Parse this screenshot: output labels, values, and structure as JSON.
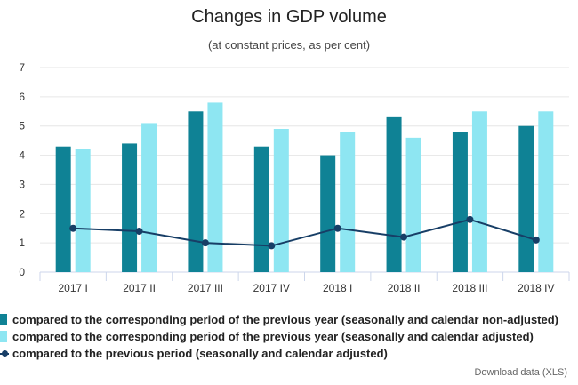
{
  "chart_data": {
    "type": "bar",
    "title": "Changes in GDP volume",
    "subtitle": "(at constant prices, as per cent)",
    "categories": [
      "2017 I",
      "2017 II",
      "2017 III",
      "2017 IV",
      "2018 I",
      "2018 II",
      "2018 III",
      "2018 IV"
    ],
    "ylim": [
      0,
      7
    ],
    "yticks": [
      0,
      1,
      2,
      3,
      4,
      5,
      6,
      7
    ],
    "grid": true,
    "legend_position": "bottom-left",
    "series": [
      {
        "name": "compared to the corresponding period of the previous year (seasonally and calendar non-adjusted)",
        "type": "bar",
        "color": "#0f8295",
        "values": [
          4.3,
          4.4,
          5.5,
          4.3,
          4.0,
          5.3,
          4.8,
          5.0
        ]
      },
      {
        "name": "compared to the corresponding period of the previous year (seasonally and calendar adjusted)",
        "type": "bar",
        "color": "#8ee6f2",
        "values": [
          4.2,
          5.1,
          5.8,
          4.9,
          4.8,
          4.6,
          5.5,
          5.5
        ]
      },
      {
        "name": "compared to the previous period (seasonally and calendar adjusted)",
        "type": "line",
        "color": "#173e66",
        "values": [
          1.5,
          1.4,
          1.0,
          0.9,
          1.5,
          1.2,
          1.8,
          1.1
        ]
      }
    ]
  },
  "footer": {
    "download_label": "Download data (XLS)"
  }
}
